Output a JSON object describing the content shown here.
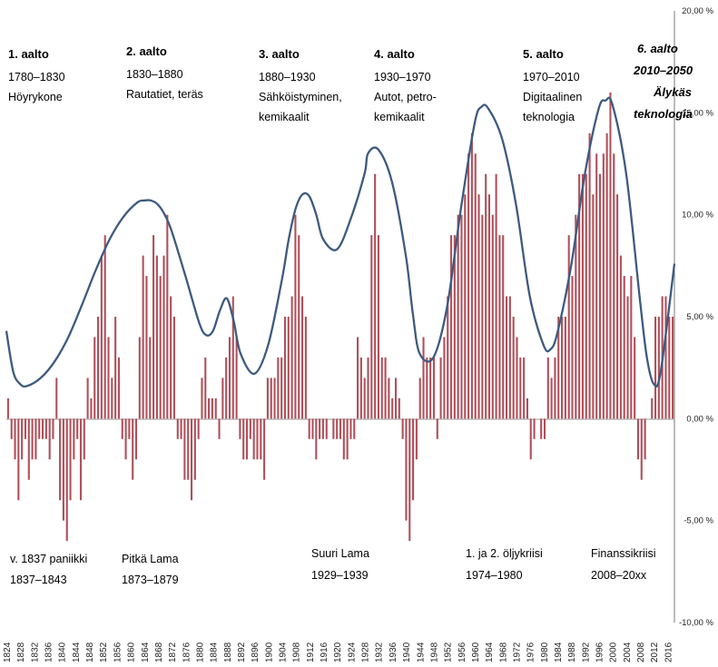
{
  "chart_data": {
    "type": "bar",
    "bar_color": "#b0505a",
    "curve_color": "#3d5a80",
    "y_ticks": [
      "20,00 %",
      "15,00 %",
      "10,00 %",
      "5,00 %",
      "0,00 %",
      "-5,00 %",
      "-10,00 %"
    ],
    "y_tick_values": [
      20,
      15,
      10,
      5,
      0,
      -5,
      -10
    ],
    "ylim": [
      -10,
      20
    ],
    "x_ticks": [
      "1824",
      "1828",
      "1832",
      "1836",
      "1840",
      "1844",
      "1848",
      "1852",
      "1856",
      "1860",
      "1864",
      "1868",
      "1872",
      "1876",
      "1880",
      "1884",
      "1888",
      "1892",
      "1896",
      "1900",
      "1904",
      "1908",
      "1912",
      "1916",
      "1920",
      "1924",
      "1928",
      "1932",
      "1936",
      "1940",
      "1944",
      "1948",
      "1952",
      "1956",
      "1960",
      "1964",
      "1968",
      "1972",
      "1976",
      "1980",
      "1984",
      "1988",
      "1992",
      "1996",
      "2000",
      "2004",
      "2008",
      "2012",
      "2016"
    ],
    "x_tick_values": [
      1824,
      1828,
      1832,
      1836,
      1840,
      1844,
      1848,
      1852,
      1856,
      1860,
      1864,
      1868,
      1872,
      1876,
      1880,
      1884,
      1888,
      1892,
      1896,
      1900,
      1904,
      1908,
      1912,
      1916,
      1920,
      1924,
      1928,
      1932,
      1936,
      1940,
      1944,
      1948,
      1952,
      1956,
      1960,
      1964,
      1968,
      1972,
      1976,
      1980,
      1984,
      1988,
      1992,
      1996,
      2000,
      2004,
      2008,
      2012,
      2016
    ],
    "xlim": [
      1824,
      2018
    ],
    "bars": {
      "start_year": 1824,
      "values": [
        1,
        -1,
        -2,
        -4,
        -2,
        -1,
        -3,
        -2,
        -2,
        -1,
        -1,
        -1,
        -2,
        -1,
        2,
        -4,
        -5,
        -6,
        -4,
        -2,
        -1,
        -4,
        -2,
        2,
        1,
        4,
        5,
        8,
        9,
        4,
        2,
        5,
        3,
        -1,
        -2,
        -1,
        -3,
        -2,
        4,
        8,
        7,
        4,
        9,
        8,
        7,
        8,
        10,
        6,
        5,
        -1,
        -1,
        -3,
        -3,
        -4,
        -3,
        -1,
        2,
        3,
        1,
        1,
        1,
        -1,
        2,
        3,
        4,
        6,
        4,
        -1,
        -2,
        -2,
        -1,
        -2,
        -2,
        -2,
        -3,
        2,
        2,
        2,
        3,
        3,
        5,
        5,
        6,
        10,
        9,
        6,
        5,
        -1,
        -1,
        -2,
        -1,
        -1,
        -1,
        0,
        -1,
        -1,
        -1,
        -2,
        -2,
        -1,
        -1,
        4,
        3,
        2,
        3,
        9,
        12,
        9,
        3,
        3,
        2,
        1,
        2,
        1,
        -1,
        -5,
        -6,
        -4,
        -2,
        2,
        4,
        3,
        3,
        3,
        -1,
        3,
        4,
        6,
        9,
        9,
        10,
        10,
        11,
        13,
        14,
        13,
        11,
        10,
        12,
        11,
        10,
        12,
        9,
        9,
        6,
        6,
        5,
        4,
        3,
        3,
        1,
        -2,
        -1,
        0,
        -1,
        -1,
        3,
        2,
        3,
        5,
        5,
        5,
        9,
        7,
        10,
        12,
        12,
        12,
        14,
        11,
        13,
        12,
        13,
        14,
        16,
        13,
        11,
        8,
        7,
        6,
        7,
        4,
        -2,
        -3,
        -2,
        0,
        1,
        5,
        5,
        6,
        6,
        5,
        5
      ],
      "value_scale": "percent"
    },
    "curve": {
      "x": [
        1824,
        1826,
        1828,
        1830,
        1834,
        1838,
        1842,
        1846,
        1850,
        1854,
        1858,
        1862,
        1864,
        1866,
        1868,
        1870,
        1872,
        1876,
        1880,
        1882,
        1884,
        1886,
        1888,
        1890,
        1892,
        1896,
        1900,
        1904,
        1906,
        1908,
        1910,
        1912,
        1914,
        1916,
        1920,
        1924,
        1928,
        1929,
        1932,
        1936,
        1940,
        1942,
        1944,
        1948,
        1952,
        1956,
        1960,
        1962,
        1964,
        1968,
        1972,
        1976,
        1980,
        1982,
        1984,
        1988,
        1992,
        1996,
        1998,
        2000,
        2004,
        2008,
        2010,
        2012,
        2014,
        2018
      ],
      "y": [
        4.3,
        2.3,
        1.7,
        1.6,
        2.0,
        2.8,
        4.0,
        5.6,
        7.3,
        8.8,
        9.9,
        10.6,
        10.7,
        10.7,
        10.5,
        10.0,
        9.2,
        7.0,
        4.7,
        4.1,
        4.3,
        5.3,
        5.9,
        4.8,
        3.2,
        2.2,
        3.6,
        6.8,
        8.8,
        10.3,
        11.0,
        10.9,
        10.0,
        8.8,
        8.3,
        9.8,
        12.0,
        13.0,
        13.2,
        11.6,
        8.0,
        5.2,
        3.2,
        3.0,
        5.5,
        10.3,
        14.5,
        15.3,
        15.2,
        13.7,
        10.5,
        6.0,
        3.6,
        3.4,
        4.2,
        7.5,
        12.0,
        15.2,
        15.6,
        15.4,
        12.0,
        5.8,
        3.0,
        1.7,
        2.3,
        7.6
      ]
    },
    "waves": [
      {
        "title": "1. aalto",
        "years": "1780–1830",
        "line1": "Höyrykone",
        "line2": ""
      },
      {
        "title": "2. aalto",
        "years": "1830–1880",
        "line1": "Rautatiet, teräs",
        "line2": ""
      },
      {
        "title": "3. aalto",
        "years": "1880–1930",
        "line1": "Sähköistyminen,",
        "line2": "kemikaalit"
      },
      {
        "title": "4. aalto",
        "years": "1930–1970",
        "line1": "Autot, petro-",
        "line2": "kemikaalit"
      },
      {
        "title": "5. aalto",
        "years": "1970–2010",
        "line1": "Digitaalinen",
        "line2": "teknologia"
      },
      {
        "title": "6. aalto",
        "years": "2010–2050",
        "line1": "Älykäs",
        "line2": "teknologia"
      }
    ],
    "crises": [
      {
        "name": "v. 1837 paniikki",
        "years": "1837–1843"
      },
      {
        "name": "Pitkä Lama",
        "years": "1873–1879"
      },
      {
        "name": "Suuri Lama",
        "years": "1929–1939"
      },
      {
        "name": "1. ja 2. öljykriisi",
        "years": "1974–1980"
      },
      {
        "name": "Finanssikriisi",
        "years": "2008–20xx"
      }
    ]
  }
}
